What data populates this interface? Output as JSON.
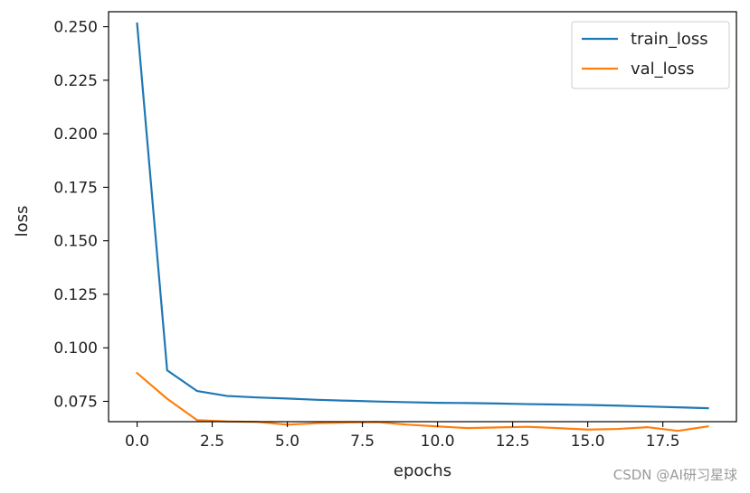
{
  "chart_data": {
    "type": "line",
    "xlabel": "epochs",
    "ylabel": "loss",
    "xlim": [
      -0.95,
      19.95
    ],
    "ylim": [
      0.0655,
      0.257
    ],
    "xticks": [
      0.0,
      2.5,
      5.0,
      7.5,
      10.0,
      12.5,
      15.0,
      17.5
    ],
    "xtick_labels": [
      "0.0",
      "2.5",
      "5.0",
      "7.5",
      "10.0",
      "12.5",
      "15.0",
      "17.5"
    ],
    "yticks": [
      0.075,
      0.1,
      0.125,
      0.15,
      0.175,
      0.2,
      0.225,
      0.25
    ],
    "ytick_labels": [
      "0.075",
      "0.100",
      "0.125",
      "0.150",
      "0.175",
      "0.200",
      "0.225",
      "0.250"
    ],
    "grid": false,
    "legend_position": "upper right",
    "x": [
      0,
      1,
      2,
      3,
      4,
      5,
      6,
      7,
      8,
      9,
      10,
      11,
      12,
      13,
      14,
      15,
      16,
      17,
      18,
      19
    ],
    "series": [
      {
        "name": "train_loss",
        "color": "#1f77b4",
        "values": [
          0.2515,
          0.0895,
          0.0798,
          0.0775,
          0.0768,
          0.0763,
          0.0757,
          0.0753,
          0.0749,
          0.0746,
          0.0743,
          0.0742,
          0.074,
          0.0737,
          0.0735,
          0.0733,
          0.073,
          0.0726,
          0.0722,
          0.0718
        ]
      },
      {
        "name": "val_loss",
        "color": "#ff7f0e",
        "values": [
          0.0882,
          0.0762,
          0.0662,
          0.0656,
          0.0654,
          0.0641,
          0.0648,
          0.0651,
          0.0653,
          0.0641,
          0.0633,
          0.0625,
          0.0628,
          0.0631,
          0.0625,
          0.0618,
          0.0621,
          0.0629,
          0.0612,
          0.0633
        ]
      }
    ]
  },
  "watermark": "CSDN @AI研习星球"
}
